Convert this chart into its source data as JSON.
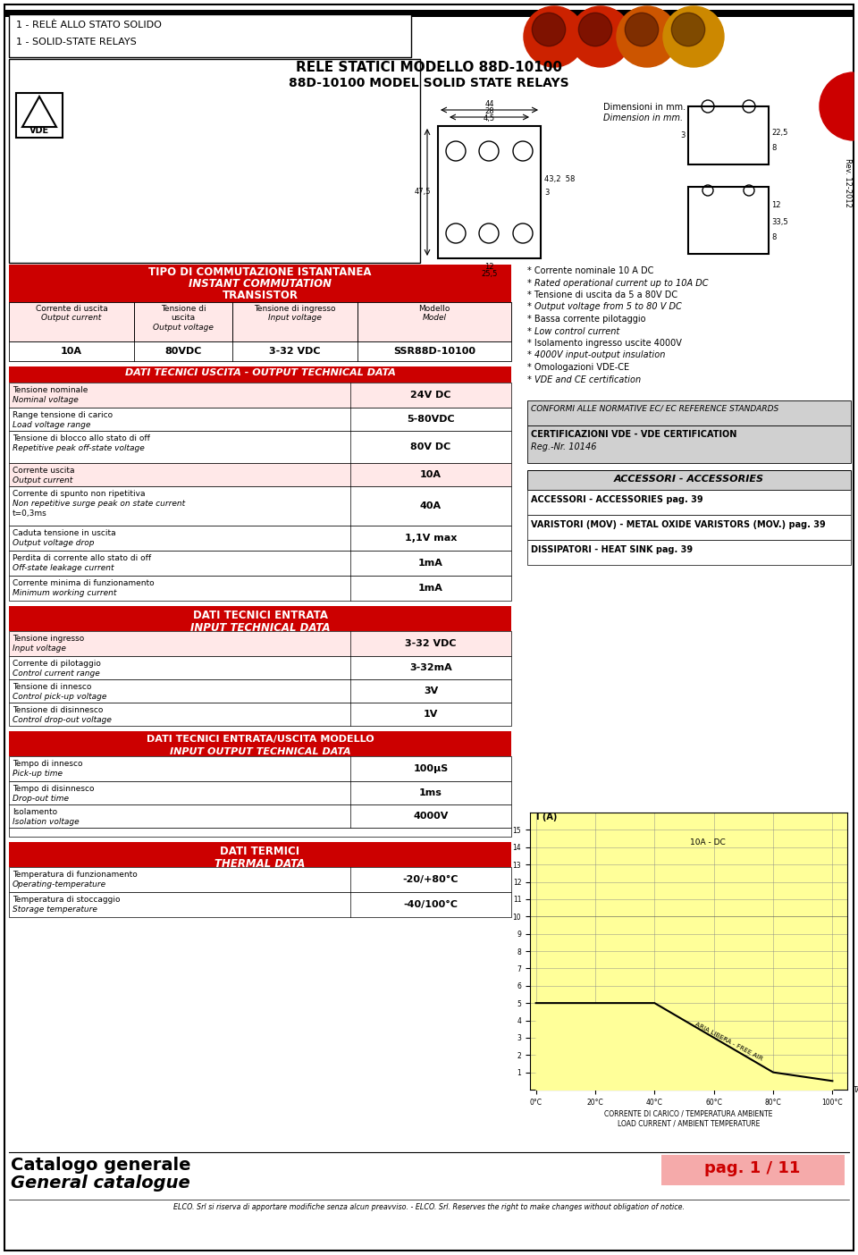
{
  "page_bg": "#ffffff",
  "red_color": "#cc0000",
  "light_red_bg": "#ffe8e8",
  "gray_bg": "#d0d0d0",
  "yellow_bg": "#ffff99",
  "title_line1": "RELE STATICI MODELLO 88D-10100",
  "title_line2": "88D-10100 MODEL SOLID STATE RELAYS",
  "rev_text": "Rev. 12-2012",
  "bullets": [
    "* Corrente nominale 10 A DC",
    "* Rated operational current up to 10A DC",
    "* Tensione di uscita da 5 a 80V DC",
    "* Output voltage from 5 to 80 V DC",
    "* Bassa corrente pilotaggio",
    "* Low control current",
    "* Isolamento ingresso uscite 4000V",
    "* 4000V input-output insulation",
    "* Omologazioni VDE-CE",
    "* VDE and CE certification"
  ],
  "output_rows": [
    [
      "Tensione nominale\nNominal voltage",
      "24V DC",
      true
    ],
    [
      "Range tensione di carico\nLoad voltage range",
      "5-80VDC",
      false
    ],
    [
      "Tensione di blocco allo stato di off\nRepetitive peak off-state voltage",
      "80V DC",
      false
    ],
    [
      "Corrente uscita\nOutput current",
      "10A",
      true
    ],
    [
      "Corrente di spunto non ripetitiva\nNon repetitive surge peak on state current\nt=0,3ms",
      "40A",
      false
    ],
    [
      "Caduta tensione in uscita\nOutput voltage drop",
      "1,1V max",
      false
    ],
    [
      "Perdita di corrente allo stato di off\nOff-state leakage current",
      "1mA",
      false
    ],
    [
      "Corrente minima di funzionamento\nMinimum working current",
      "1mA",
      false
    ]
  ],
  "output_row_heights": [
    28,
    26,
    36,
    26,
    44,
    28,
    28,
    28
  ],
  "input_rows": [
    [
      "Tensione ingresso\nInput voltage",
      "3-32 VDC",
      true
    ],
    [
      "Corrente di pilotaggio\nControl current range",
      "3-32mA",
      false
    ],
    [
      "Tensione di innesco\nControl pick-up voltage",
      "3V",
      false
    ],
    [
      "Tensione di disinnesco\nControl drop-out voltage",
      "1V",
      false
    ]
  ],
  "io_rows": [
    [
      "Tempo di innesco\nPick-up time",
      "100μS",
      false
    ],
    [
      "Tempo di disinnesco\nDrop-out time",
      "1ms",
      false
    ],
    [
      "Isolamento\nIsolation voltage",
      "4000V",
      false
    ]
  ],
  "thermal_rows": [
    [
      "Temperatura di funzionamento\nOperating-temperature",
      "-20/+80°C",
      false
    ],
    [
      "Temperatura di stoccaggio\nStorage temperature",
      "-40/100°C",
      false
    ]
  ],
  "accessories_items": [
    "ACCESSORI - ACCESSORIES pag. 39",
    "VARISTORI (MOV) - METAL OXIDE VARISTORS (MOV.) pag. 39",
    "DISSIPATORI - HEAT SINK pag. 39"
  ],
  "footer_text": "ELCO. Srl si riserva di apportare modifiche senza alcun preavviso. - ELCO. Srl. Reserves the right to make changes without obligation of notice."
}
